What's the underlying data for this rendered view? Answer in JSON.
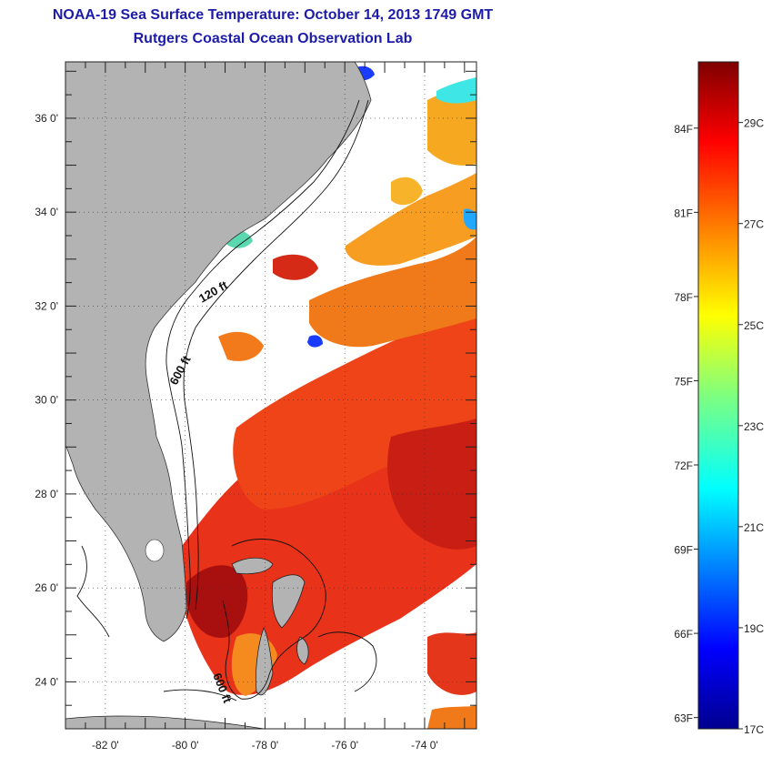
{
  "title": {
    "line1": "NOAA-19 Sea Surface Temperature:  October 14, 2013 1749 GMT",
    "line2": "Rutgers Coastal Ocean Observation Lab"
  },
  "map": {
    "lon_range": [
      -83,
      -72.7
    ],
    "lat_range": [
      23,
      37.2
    ],
    "lat_labels": [
      "24 0'",
      "26 0'",
      "28 0'",
      "30 0'",
      "32 0'",
      "34 0'",
      "36 0'"
    ],
    "lat_values": [
      24,
      26,
      28,
      30,
      32,
      34,
      36
    ],
    "lon_labels": [
      "-82 0'",
      "-80 0'",
      "-78 0'",
      "-76 0'",
      "-74 0'"
    ],
    "lon_values": [
      -82,
      -80,
      -78,
      -76,
      -74
    ],
    "contour_labels": [
      "120 ft",
      "600 ft",
      "600 ft"
    ],
    "land_color": "#b3b3b3",
    "cloud_color": "#ffffff"
  },
  "colorbar": {
    "f_labels": [
      "84F",
      "81F",
      "78F",
      "75F",
      "72F",
      "69F",
      "66F",
      "63F"
    ],
    "c_labels": [
      "29C",
      "27C",
      "25C",
      "23C",
      "21C",
      "19C",
      "17C"
    ],
    "range_c": [
      17,
      30.2
    ],
    "colormap": "jet"
  }
}
